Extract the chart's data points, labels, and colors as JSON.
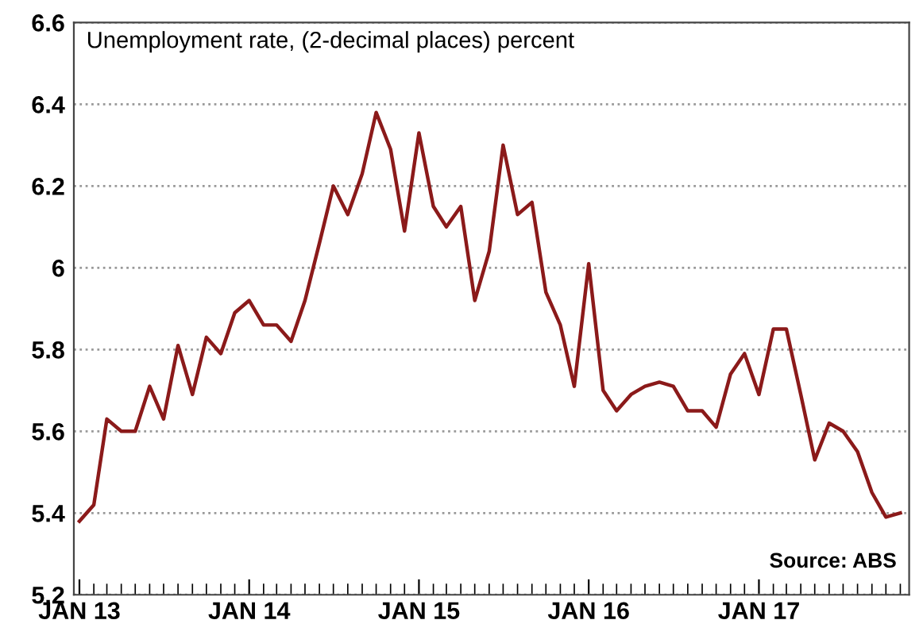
{
  "chart_data": {
    "type": "line",
    "annotations": [
      "Unemployment rate, (2-decimal places) percent",
      "Source: ABS"
    ],
    "x": [
      "2013-01",
      "2013-02",
      "2013-03",
      "2013-04",
      "2013-05",
      "2013-06",
      "2013-07",
      "2013-08",
      "2013-09",
      "2013-10",
      "2013-11",
      "2013-12",
      "2014-01",
      "2014-02",
      "2014-03",
      "2014-04",
      "2014-05",
      "2014-06",
      "2014-07",
      "2014-08",
      "2014-09",
      "2014-10",
      "2014-11",
      "2014-12",
      "2015-01",
      "2015-02",
      "2015-03",
      "2015-04",
      "2015-05",
      "2015-06",
      "2015-07",
      "2015-08",
      "2015-09",
      "2015-10",
      "2015-11",
      "2015-12",
      "2016-01",
      "2016-02",
      "2016-03",
      "2016-04",
      "2016-05",
      "2016-06",
      "2016-07",
      "2016-08",
      "2016-09",
      "2016-10",
      "2016-11",
      "2016-12",
      "2017-01",
      "2017-02",
      "2017-03",
      "2017-04",
      "2017-05",
      "2017-06",
      "2017-07",
      "2017-08",
      "2017-09",
      "2017-10",
      "2017-11"
    ],
    "series": [
      {
        "color": "#8b1a1a",
        "values": [
          5.38,
          5.42,
          5.63,
          5.6,
          5.6,
          5.71,
          5.63,
          5.81,
          5.69,
          5.83,
          5.79,
          5.89,
          5.92,
          5.86,
          5.86,
          5.82,
          5.92,
          6.06,
          6.2,
          6.13,
          6.23,
          6.38,
          6.29,
          6.09,
          6.33,
          6.15,
          6.1,
          6.15,
          5.92,
          6.04,
          6.3,
          6.13,
          6.16,
          5.94,
          5.86,
          5.71,
          6.01,
          5.7,
          5.65,
          5.69,
          5.71,
          5.72,
          5.71,
          5.65,
          5.65,
          5.61,
          5.74,
          5.79,
          5.69,
          5.85,
          5.85,
          5.69,
          5.53,
          5.62,
          5.6,
          5.55,
          5.45,
          5.39,
          5.4
        ]
      }
    ],
    "xlim": [
      "2012-12-20",
      "2017-11-20"
    ],
    "xticks": [
      {
        "value": "2013-01",
        "label": "JAN 13"
      },
      {
        "value": "2014-01",
        "label": "JAN 14"
      },
      {
        "value": "2015-01",
        "label": "JAN 15"
      },
      {
        "value": "2016-01",
        "label": "JAN 16"
      },
      {
        "value": "2017-01",
        "label": "JAN 17"
      }
    ],
    "ylim": [
      5.2,
      6.6
    ],
    "yticks": [
      5.2,
      5.4,
      5.6,
      5.8,
      6,
      6.2,
      6.4,
      6.6
    ],
    "grid": "y",
    "legend": false,
    "marker": "none",
    "line_style": "solid"
  }
}
